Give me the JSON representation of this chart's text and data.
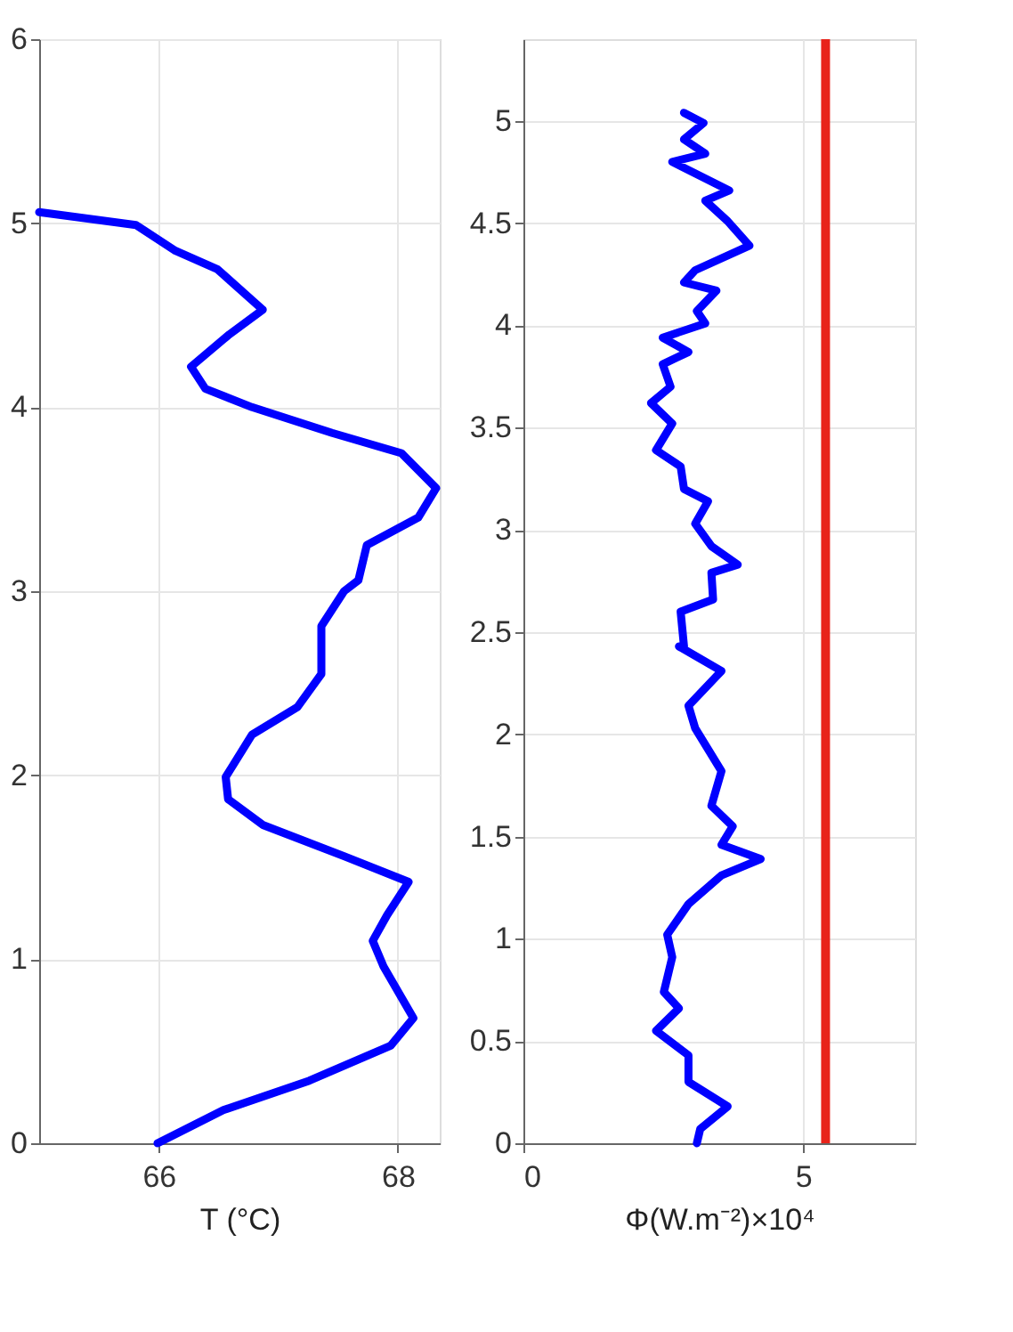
{
  "chart_data": [
    {
      "type": "line",
      "xlabel": "T (°C)",
      "xlim": [
        65,
        68.35
      ],
      "xticks": [
        66,
        68
      ],
      "ylim": [
        0,
        6
      ],
      "yticks": [
        0,
        1,
        2,
        3,
        4,
        5,
        6
      ],
      "grid": true,
      "line_style": "solid",
      "marker": "none",
      "series": [
        {
          "color": "#0000ff",
          "x": [
            65.99,
            66.54,
            67.26,
            67.94,
            68.13,
            67.88,
            67.79,
            67.91,
            68.09,
            67.55,
            66.87,
            66.58,
            66.56,
            66.78,
            67.16,
            67.36,
            67.36,
            67.55,
            67.67,
            67.74,
            68.17,
            68.32,
            68.03,
            67.45,
            66.78,
            66.39,
            66.27,
            66.58,
            66.87,
            66.49,
            66.14,
            65.81,
            65.0
          ],
          "values": [
            0.0,
            0.18,
            0.34,
            0.53,
            0.68,
            0.96,
            1.1,
            1.24,
            1.42,
            1.56,
            1.73,
            1.87,
            1.99,
            2.22,
            2.37,
            2.55,
            2.81,
            3.0,
            3.06,
            3.25,
            3.4,
            3.56,
            3.75,
            3.86,
            4.0,
            4.1,
            4.22,
            4.39,
            4.53,
            4.75,
            4.85,
            4.99,
            5.06
          ]
        }
      ]
    },
    {
      "type": "line",
      "xlabel": "Φ(W.m⁻²)×10⁴",
      "xlim": [
        0,
        7
      ],
      "xticks": [
        0,
        5
      ],
      "ylim": [
        0,
        5.4
      ],
      "yticks": [
        0,
        0.5,
        1,
        1.5,
        2,
        2.5,
        3,
        3.5,
        4,
        4.5,
        5
      ],
      "grid": true,
      "line_style": "solid",
      "marker": "none",
      "ref_lines": [
        {
          "axis": "x",
          "value": 5.4,
          "color": "#e8231a",
          "line_style": "solid"
        }
      ],
      "series": [
        {
          "color": "#0000ff",
          "x": [
            3.1,
            3.16,
            3.65,
            2.95,
            2.95,
            2.37,
            2.78,
            2.51,
            2.66,
            2.57,
            2.95,
            3.54,
            4.24,
            3.54,
            3.74,
            3.36,
            3.54,
            3.07,
            2.95,
            3.54,
            2.78,
            2.87,
            2.81,
            3.39,
            3.36,
            3.83,
            3.36,
            3.07,
            3.3,
            2.87,
            2.81,
            2.37,
            2.66,
            2.28,
            2.63,
            2.49,
            2.95,
            2.49,
            3.25,
            3.1,
            3.45,
            2.87,
            3.07,
            4.04,
            3.65,
            3.25,
            3.68,
            2.66,
            3.25,
            2.87,
            3.22,
            2.87
          ],
          "values": [
            0.0,
            0.07,
            0.18,
            0.3,
            0.43,
            0.55,
            0.66,
            0.74,
            0.91,
            1.02,
            1.17,
            1.31,
            1.39,
            1.46,
            1.55,
            1.65,
            1.82,
            2.03,
            2.14,
            2.31,
            2.43,
            2.43,
            2.6,
            2.66,
            2.79,
            2.83,
            2.92,
            3.03,
            3.14,
            3.2,
            3.31,
            3.39,
            3.52,
            3.62,
            3.7,
            3.81,
            3.87,
            3.94,
            4.01,
            4.07,
            4.17,
            4.21,
            4.27,
            4.39,
            4.51,
            4.61,
            4.66,
            4.8,
            4.84,
            4.91,
            4.99,
            5.04
          ]
        }
      ]
    }
  ]
}
